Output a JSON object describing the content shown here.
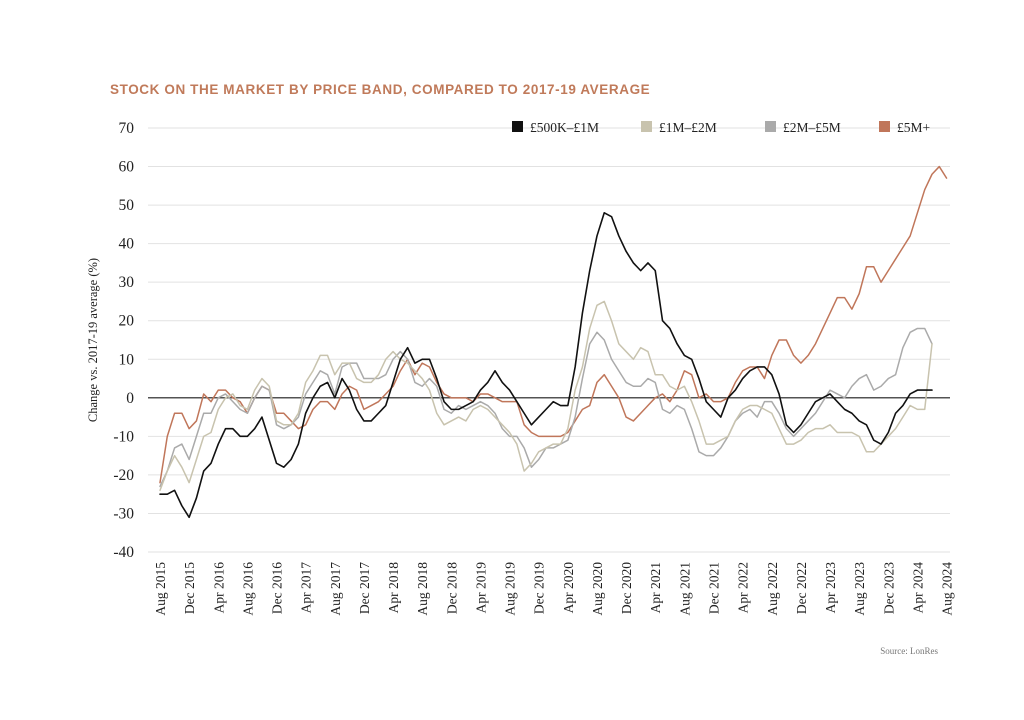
{
  "chart_data": {
    "type": "line",
    "title": "STOCK ON THE MARKET BY PRICE BAND, COMPARED TO 2017-19 AVERAGE",
    "xlabel": "",
    "ylabel": "Change vs. 2017-19 average (%)",
    "ylim": [
      -40,
      70
    ],
    "yticks": [
      70,
      60,
      50,
      40,
      30,
      20,
      10,
      0,
      -10,
      -20,
      -30,
      -40
    ],
    "x_tick_labels": [
      "Aug 2015",
      "Dec 2015",
      "Apr 2016",
      "Aug 2016",
      "Dec 2016",
      "Apr 2017",
      "Aug 2017",
      "Dec 2017",
      "Apr 2018",
      "Aug 2018",
      "Dec 2018",
      "Apr 2019",
      "Aug 2019",
      "Dec 2019",
      "Apr 2020",
      "Aug 2020",
      "Dec 2020",
      "Apr 2021",
      "Aug 2021",
      "Dec 2021",
      "Apr 2022",
      "Aug 2022",
      "Dec 2022",
      "Apr 2023",
      "Aug 2023",
      "Dec 2023",
      "Apr 2024",
      "Aug 2024"
    ],
    "x_start": "Aug 2015",
    "x_interval_months": 1,
    "grid": true,
    "legend_position": "top-right",
    "source": "Source: LonRes",
    "series": [
      {
        "name": "£500K–£1M",
        "color": "#111111",
        "values": [
          -25,
          -25,
          -24,
          -28,
          -31,
          -26,
          -19,
          -17,
          -12,
          -8,
          -8,
          -10,
          -10,
          -8,
          -5,
          -11,
          -17,
          -18,
          -16,
          -12,
          -4,
          0,
          3,
          4,
          0,
          5,
          2,
          -3,
          -6,
          -6,
          -4,
          -2,
          4,
          10,
          13,
          9,
          10,
          10,
          5,
          -1,
          -3,
          -3,
          -2,
          -1,
          2,
          4,
          7,
          4,
          2,
          -1,
          -4,
          -7,
          -5,
          -3,
          -1,
          -2,
          -2,
          8,
          22,
          33,
          42,
          48,
          47,
          42,
          38,
          35,
          33,
          35,
          33,
          20,
          18,
          14,
          11,
          10,
          5,
          -1,
          -3,
          -5,
          0,
          2,
          5,
          7,
          8,
          8,
          6,
          1,
          -7,
          -9,
          -7,
          -4,
          -1,
          0,
          1,
          -1,
          -3,
          -4,
          -6,
          -7,
          -11,
          -12,
          -9,
          -4,
          -2,
          1,
          2,
          2,
          2
        ]
      },
      {
        "name": "£1M–£2M",
        "color": "#c8c3ae",
        "values": [
          -24,
          -19,
          -15,
          -18,
          -22,
          -16,
          -10,
          -9,
          -3,
          0,
          1,
          -2,
          -3,
          2,
          5,
          3,
          -6,
          -7,
          -7,
          -4,
          4,
          7,
          11,
          11,
          6,
          9,
          9,
          5,
          4,
          4,
          6,
          10,
          12,
          10,
          9,
          7,
          5,
          2,
          -4,
          -7,
          -6,
          -5,
          -6,
          -3,
          -2,
          -3,
          -5,
          -7,
          -9,
          -12,
          -19,
          -17,
          -14,
          -13,
          -12,
          -12,
          -8,
          2,
          8,
          18,
          24,
          25,
          20,
          14,
          12,
          10,
          13,
          12,
          6,
          6,
          3,
          2,
          3,
          -1,
          -6,
          -12,
          -12,
          -11,
          -10,
          -6,
          -3,
          -2,
          -2,
          -3,
          -4,
          -8,
          -12,
          -12,
          -11,
          -9,
          -8,
          -8,
          -7,
          -9,
          -9,
          -9,
          -10,
          -14,
          -14,
          -12,
          -10,
          -8,
          -5,
          -2,
          -3,
          -3,
          14
        ]
      },
      {
        "name": "£2M–£5M",
        "color": "#aaaaaa",
        "values": [
          -23,
          -19,
          -13,
          -12,
          -16,
          -10,
          -4,
          -4,
          0,
          1,
          -1,
          -3,
          -4,
          0,
          3,
          2,
          -7,
          -8,
          -7,
          -5,
          1,
          4,
          7,
          6,
          1,
          8,
          9,
          9,
          5,
          5,
          5,
          6,
          10,
          12,
          10,
          4,
          3,
          5,
          3,
          -3,
          -4,
          -2,
          -3,
          -2,
          -1,
          -2,
          -4,
          -8,
          -10,
          -10,
          -13,
          -18,
          -16,
          -13,
          -13,
          -12,
          -11,
          -5,
          5,
          14,
          17,
          15,
          10,
          7,
          4,
          3,
          3,
          5,
          4,
          -3,
          -4,
          -2,
          -3,
          -8,
          -14,
          -15,
          -15,
          -13,
          -10,
          -6,
          -4,
          -3,
          -5,
          -1,
          -1,
          -4,
          -8,
          -10,
          -8,
          -6,
          -4,
          -1,
          2,
          1,
          0,
          3,
          5,
          6,
          2,
          3,
          5,
          6,
          13,
          17,
          18,
          18,
          14
        ]
      },
      {
        "name": "£5M+",
        "color": "#c0765a",
        "values": [
          -22,
          -10,
          -4,
          -4,
          -8,
          -6,
          1,
          -1,
          2,
          2,
          0,
          -1,
          -4,
          0,
          3,
          2,
          -4,
          -4,
          -6,
          -8,
          -7,
          -3,
          -1,
          -1,
          -3,
          1,
          3,
          2,
          -3,
          -2,
          -1,
          1,
          3,
          7,
          10,
          6,
          9,
          8,
          4,
          1,
          0,
          0,
          0,
          -1,
          1,
          1,
          0,
          -1,
          -1,
          -1,
          -7,
          -9,
          -10,
          -10,
          -10,
          -10,
          -9,
          -6,
          -3,
          -2,
          4,
          6,
          3,
          0,
          -5,
          -6,
          -4,
          -2,
          0,
          1,
          -1,
          2,
          7,
          6,
          0,
          1,
          -1,
          -1,
          0,
          4,
          7,
          8,
          8,
          5,
          11,
          15,
          15,
          11,
          9,
          11,
          14,
          18,
          22,
          26,
          26,
          23,
          27,
          34,
          34,
          30,
          33,
          36,
          39,
          42,
          48,
          54,
          58,
          60,
          57
        ]
      }
    ]
  }
}
